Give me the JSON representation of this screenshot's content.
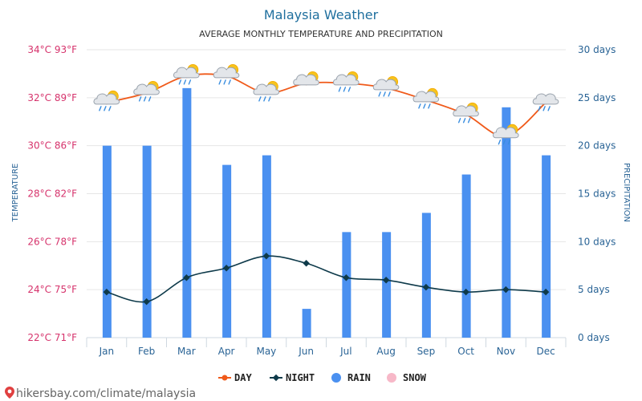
{
  "colors": {
    "title": "#1f6f9e",
    "axis_left": "#d6336c",
    "axis_right": "#2a6496",
    "day": "#f05a1a",
    "night": "#0e3a4a",
    "rain": "#4a90f0",
    "snow": "#f7b8c8",
    "grid": "#e6e6e6",
    "axis_line": "#cfd8e0",
    "footer": "#666666"
  },
  "footer": {
    "url": "hikersbay.com/climate/malaysia"
  },
  "chart_data": {
    "type": "line",
    "title": "Malaysia Weather",
    "subtitle": "AVERAGE MONTHLY TEMPERATURE AND PRECIPITATION",
    "ylabel": "TEMPERATURE",
    "ylabel_right": "PRECIPITATION",
    "categories": [
      "Jan",
      "Feb",
      "Mar",
      "Apr",
      "May",
      "Jun",
      "Jul",
      "Aug",
      "Sep",
      "Oct",
      "Nov",
      "Dec"
    ],
    "ylim": [
      22,
      34
    ],
    "ylim_right": [
      0,
      30
    ],
    "y_ticks": [
      "22°C 71°F",
      "24°C 75°F",
      "26°C 78°F",
      "28°C 82°F",
      "30°C 86°F",
      "32°C 89°F",
      "34°C 93°F"
    ],
    "y_ticks_right": [
      "0 days",
      "5 days",
      "10 days",
      "15 days",
      "20 days",
      "25 days",
      "30 days"
    ],
    "grid": true,
    "legend_position": "bottom",
    "series": [
      {
        "name": "DAY",
        "kind": "line",
        "axis": "left",
        "values": [
          31.8,
          32.2,
          32.9,
          32.9,
          32.2,
          32.6,
          32.6,
          32.4,
          31.9,
          31.3,
          30.4,
          31.8
        ]
      },
      {
        "name": "NIGHT",
        "kind": "line",
        "axis": "left",
        "values": [
          23.9,
          23.5,
          24.5,
          24.9,
          25.4,
          25.1,
          24.5,
          24.4,
          24.1,
          23.9,
          24.0,
          23.9
        ]
      },
      {
        "name": "RAIN",
        "kind": "bar",
        "axis": "right",
        "values": [
          20,
          20,
          26,
          18,
          19,
          3,
          11,
          11,
          13,
          17,
          24,
          19
        ]
      },
      {
        "name": "SNOW",
        "kind": "bar",
        "axis": "right",
        "values": [
          0,
          0,
          0,
          0,
          0,
          0,
          0,
          0,
          0,
          0,
          0,
          0
        ]
      }
    ],
    "weather_icons": [
      "sun-cloud-rain-icon",
      "sun-cloud-rain-icon",
      "sun-cloud-rain-icon",
      "sun-cloud-rain-icon",
      "sun-cloud-rain-icon",
      "sun-cloud-icon",
      "sun-cloud-rain-icon",
      "sun-cloud-rain-icon",
      "sun-cloud-rain-icon",
      "sun-cloud-rain-icon",
      "sun-cloud-rain-icon",
      "cloud-rain-icon"
    ]
  }
}
